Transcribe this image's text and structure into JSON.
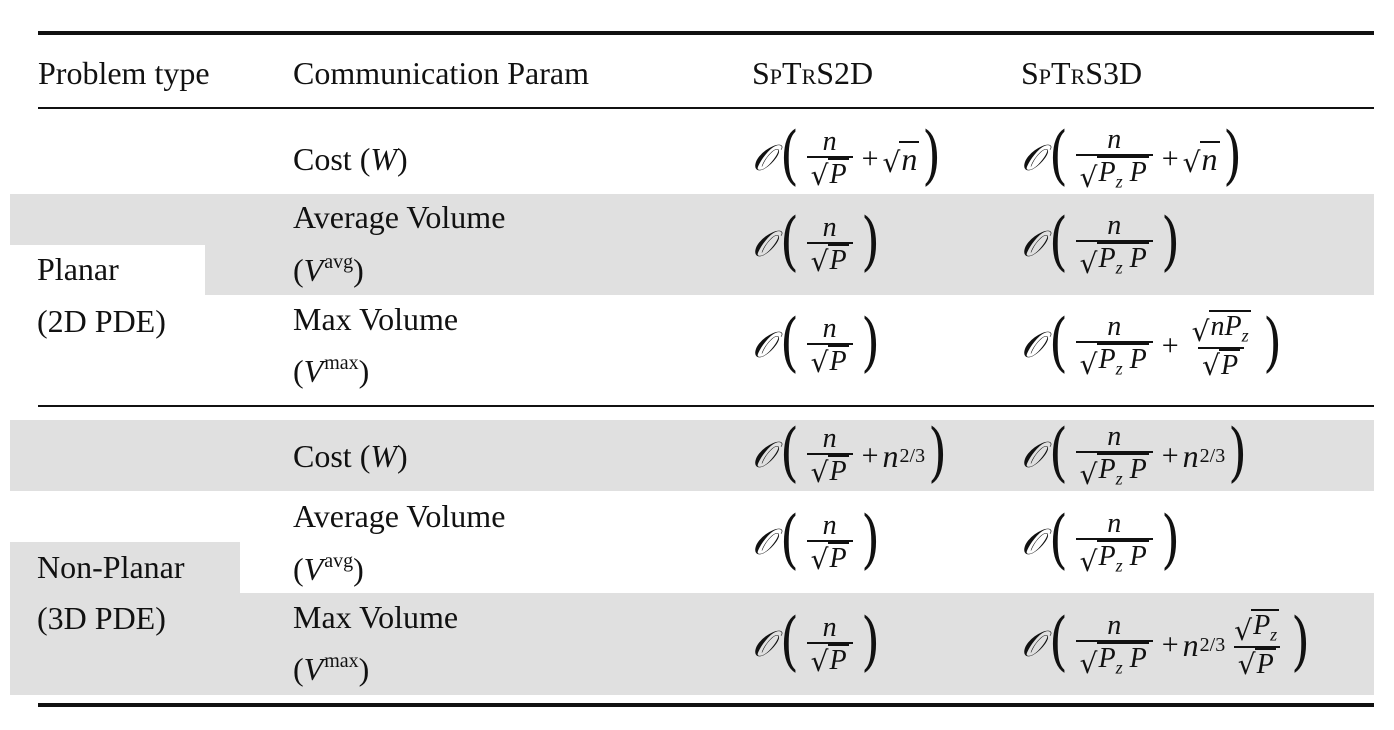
{
  "header": {
    "col_problem": "Problem type",
    "col_param": "Communication Param",
    "col_2d": "SpTrS2D",
    "col_3d": "SpTrS3D"
  },
  "sections": [
    {
      "type_line1": "Planar",
      "type_line2": "(2D PDE)",
      "rows": [
        {
          "param_line1": "Cost (W)",
          "param_line2": ""
        },
        {
          "param_line1": "Average Volume",
          "param_line2": "(V",
          "param_sup": "avg"
        },
        {
          "param_line1": "Max Volume",
          "param_line2": "(V",
          "param_sup": "max"
        }
      ]
    },
    {
      "type_line1": "Non-Planar",
      "type_line2": "(3D PDE)",
      "rows": [
        {
          "param_line1": "Cost (W)",
          "param_line2": ""
        },
        {
          "param_line1": "Average Volume",
          "param_line2": "(V",
          "param_sup": "avg"
        },
        {
          "param_line1": "Max Volume",
          "param_line2": "(V",
          "param_sup": "max"
        }
      ]
    }
  ],
  "math_tokens": {
    "big_o": "𝒪",
    "n": "n",
    "P": "P",
    "z": "z",
    "plus": "+",
    "root": "√",
    "exp_23": "2/3"
  },
  "colors": {
    "row_shade": "#e0e0e0",
    "rule": "#111111"
  }
}
